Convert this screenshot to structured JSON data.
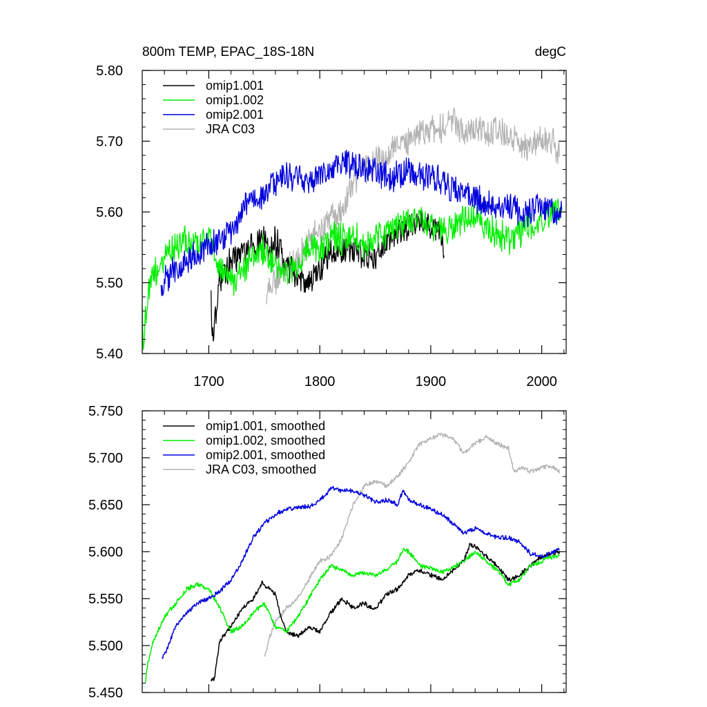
{
  "chart_data": [
    {
      "type": "line",
      "title": "800m TEMP, EPAC_18S-18N",
      "units": "degC",
      "xlim": [
        1640,
        2022
      ],
      "ylim": [
        5.4,
        5.8
      ],
      "xticks": [
        1700,
        1800,
        1900,
        2000
      ],
      "xtick_labels": [
        "1700",
        "1800",
        "1900",
        "2000"
      ],
      "yticks": [
        5.4,
        5.5,
        5.6,
        5.7,
        5.8
      ],
      "ytick_labels": [
        "5.40",
        "5.50",
        "5.60",
        "5.70",
        "5.80"
      ],
      "legend_location": "top-left",
      "series": [
        {
          "name": "omip1.001",
          "color": "#000000",
          "x": [
            1702,
            1703,
            1710,
            1720,
            1730,
            1740,
            1750,
            1753,
            1760,
            1770,
            1780,
            1790,
            1800,
            1810,
            1820,
            1830,
            1840,
            1850,
            1860,
            1870,
            1880,
            1890,
            1900,
            1910,
            1912
          ],
          "y": [
            5.49,
            5.42,
            5.5,
            5.53,
            5.54,
            5.55,
            5.57,
            5.55,
            5.56,
            5.52,
            5.51,
            5.5,
            5.52,
            5.55,
            5.54,
            5.55,
            5.54,
            5.53,
            5.56,
            5.57,
            5.58,
            5.59,
            5.58,
            5.57,
            5.53
          ]
        },
        {
          "name": "omip1.002",
          "color": "#00ee00",
          "x": [
            1640,
            1641,
            1645,
            1650,
            1655,
            1660,
            1670,
            1680,
            1690,
            1700,
            1710,
            1720,
            1730,
            1740,
            1750,
            1760,
            1770,
            1780,
            1790,
            1800,
            1810,
            1820,
            1830,
            1840,
            1850,
            1860,
            1870,
            1880,
            1890,
            1900,
            1910,
            1920,
            1930,
            1940,
            1950,
            1960,
            1970,
            1980,
            1990,
            2000,
            2010,
            2018
          ],
          "y": [
            5.48,
            5.42,
            5.48,
            5.52,
            5.51,
            5.54,
            5.55,
            5.56,
            5.55,
            5.57,
            5.52,
            5.5,
            5.51,
            5.54,
            5.55,
            5.52,
            5.51,
            5.53,
            5.55,
            5.54,
            5.57,
            5.56,
            5.57,
            5.55,
            5.56,
            5.57,
            5.58,
            5.59,
            5.59,
            5.58,
            5.57,
            5.58,
            5.59,
            5.6,
            5.58,
            5.57,
            5.56,
            5.57,
            5.58,
            5.59,
            5.6,
            5.6
          ]
        },
        {
          "name": "omip2.001",
          "color": "#0000dd",
          "x": [
            1657,
            1660,
            1670,
            1680,
            1690,
            1700,
            1710,
            1720,
            1730,
            1740,
            1750,
            1760,
            1770,
            1780,
            1790,
            1800,
            1810,
            1820,
            1830,
            1840,
            1850,
            1860,
            1870,
            1880,
            1890,
            1900,
            1910,
            1920,
            1930,
            1940,
            1950,
            1960,
            1970,
            1980,
            1990,
            2000,
            2010,
            2018
          ],
          "y": [
            5.48,
            5.5,
            5.52,
            5.53,
            5.54,
            5.55,
            5.56,
            5.57,
            5.6,
            5.62,
            5.62,
            5.64,
            5.65,
            5.65,
            5.64,
            5.65,
            5.66,
            5.67,
            5.67,
            5.66,
            5.66,
            5.65,
            5.65,
            5.66,
            5.65,
            5.65,
            5.64,
            5.63,
            5.62,
            5.62,
            5.61,
            5.61,
            5.61,
            5.6,
            5.6,
            5.61,
            5.6,
            5.6
          ]
        },
        {
          "name": "JRA C03",
          "color": "#b4b4b4",
          "x": [
            1752,
            1760,
            1770,
            1780,
            1790,
            1800,
            1810,
            1820,
            1830,
            1840,
            1850,
            1860,
            1870,
            1880,
            1890,
            1900,
            1910,
            1920,
            1930,
            1940,
            1950,
            1960,
            1970,
            1980,
            1990,
            2000,
            2010,
            2016
          ],
          "y": [
            5.49,
            5.5,
            5.52,
            5.53,
            5.56,
            5.57,
            5.59,
            5.6,
            5.64,
            5.66,
            5.67,
            5.68,
            5.69,
            5.7,
            5.71,
            5.72,
            5.72,
            5.73,
            5.71,
            5.72,
            5.71,
            5.72,
            5.7,
            5.7,
            5.69,
            5.7,
            5.7,
            5.68
          ]
        }
      ]
    },
    {
      "type": "line",
      "title": "",
      "xlim": [
        1640,
        2022
      ],
      "ylim": [
        5.45,
        5.75
      ],
      "xticks": [
        1700,
        1800,
        1900,
        2000
      ],
      "yticks": [
        5.45,
        5.5,
        5.55,
        5.6,
        5.65,
        5.7,
        5.75
      ],
      "ytick_labels": [
        "5.450",
        "5.500",
        "5.550",
        "5.600",
        "5.650",
        "5.700",
        "5.750"
      ],
      "legend_location": "top-left",
      "series": [
        {
          "name": "omip1.001, smoothed",
          "color": "#000000",
          "x": [
            1702,
            1705,
            1710,
            1720,
            1730,
            1740,
            1748,
            1755,
            1760,
            1765,
            1770,
            1780,
            1790,
            1800,
            1810,
            1820,
            1830,
            1840,
            1850,
            1860,
            1870,
            1880,
            1890,
            1900,
            1910,
            1920,
            1930,
            1935,
            1940,
            1950,
            1960,
            1970,
            1980,
            1990,
            2000,
            2010,
            2016
          ],
          "y": [
            5.463,
            5.465,
            5.505,
            5.52,
            5.54,
            5.55,
            5.567,
            5.56,
            5.555,
            5.53,
            5.515,
            5.51,
            5.52,
            5.515,
            5.535,
            5.55,
            5.54,
            5.545,
            5.538,
            5.555,
            5.56,
            5.575,
            5.58,
            5.575,
            5.57,
            5.58,
            5.59,
            5.607,
            5.605,
            5.595,
            5.585,
            5.57,
            5.575,
            5.585,
            5.595,
            5.598,
            5.6
          ]
        },
        {
          "name": "omip1.002, smoothed",
          "color": "#00ee00",
          "x": [
            1643,
            1645,
            1650,
            1660,
            1670,
            1680,
            1690,
            1700,
            1710,
            1720,
            1730,
            1740,
            1750,
            1760,
            1770,
            1780,
            1790,
            1800,
            1810,
            1820,
            1830,
            1840,
            1850,
            1860,
            1870,
            1875,
            1880,
            1890,
            1900,
            1910,
            1920,
            1930,
            1940,
            1950,
            1960,
            1970,
            1980,
            1990,
            2000,
            2010,
            2016
          ],
          "y": [
            5.463,
            5.48,
            5.505,
            5.53,
            5.545,
            5.56,
            5.565,
            5.56,
            5.54,
            5.515,
            5.52,
            5.535,
            5.545,
            5.52,
            5.515,
            5.53,
            5.55,
            5.57,
            5.585,
            5.58,
            5.575,
            5.578,
            5.575,
            5.58,
            5.59,
            5.602,
            5.6,
            5.585,
            5.583,
            5.578,
            5.583,
            5.59,
            5.6,
            5.59,
            5.58,
            5.565,
            5.57,
            5.585,
            5.59,
            5.595,
            5.595
          ]
        },
        {
          "name": "omip2.001, smoothed",
          "color": "#0000dd",
          "x": [
            1658,
            1660,
            1670,
            1680,
            1690,
            1700,
            1710,
            1720,
            1730,
            1740,
            1750,
            1760,
            1770,
            1780,
            1790,
            1800,
            1805,
            1810,
            1820,
            1830,
            1840,
            1850,
            1860,
            1870,
            1875,
            1880,
            1890,
            1900,
            1910,
            1920,
            1930,
            1940,
            1950,
            1960,
            1970,
            1980,
            1990,
            2000,
            2010,
            2016
          ],
          "y": [
            5.487,
            5.49,
            5.52,
            5.535,
            5.545,
            5.55,
            5.558,
            5.57,
            5.59,
            5.615,
            5.63,
            5.64,
            5.645,
            5.647,
            5.648,
            5.655,
            5.66,
            5.668,
            5.665,
            5.665,
            5.66,
            5.653,
            5.655,
            5.65,
            5.665,
            5.655,
            5.65,
            5.645,
            5.64,
            5.63,
            5.62,
            5.625,
            5.62,
            5.615,
            5.615,
            5.61,
            5.598,
            5.595,
            5.6,
            5.602
          ]
        },
        {
          "name": "JRA C03, smoothed",
          "color": "#b4b4b4",
          "x": [
            1750,
            1755,
            1760,
            1770,
            1780,
            1790,
            1800,
            1810,
            1820,
            1830,
            1840,
            1850,
            1860,
            1870,
            1880,
            1890,
            1900,
            1910,
            1920,
            1930,
            1940,
            1950,
            1960,
            1970,
            1975,
            1980,
            1990,
            2000,
            2010,
            2016
          ],
          "y": [
            5.487,
            5.51,
            5.525,
            5.54,
            5.55,
            5.57,
            5.59,
            5.595,
            5.615,
            5.65,
            5.67,
            5.675,
            5.67,
            5.68,
            5.695,
            5.715,
            5.72,
            5.725,
            5.72,
            5.705,
            5.715,
            5.722,
            5.715,
            5.71,
            5.685,
            5.69,
            5.685,
            5.69,
            5.69,
            5.685
          ]
        }
      ]
    }
  ]
}
